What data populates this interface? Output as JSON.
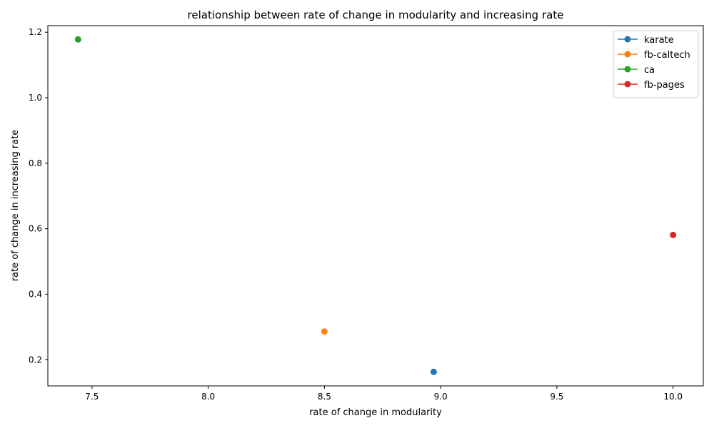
{
  "chart_data": {
    "type": "line",
    "title": "relationship between rate of change in modularity and increasing rate",
    "xlabel": "rate of change in modularity",
    "ylabel": "rate of change in increasing rate",
    "xlim": [
      7.31,
      10.13
    ],
    "ylim": [
      0.12,
      1.22
    ],
    "xticks": [
      7.5,
      8.0,
      8.5,
      9.0,
      9.5,
      10.0
    ],
    "xtick_labels": [
      "7.5",
      "8.0",
      "8.5",
      "9.0",
      "9.5",
      "10.0"
    ],
    "yticks": [
      0.2,
      0.4,
      0.6,
      0.8,
      1.0,
      1.2
    ],
    "ytick_labels": [
      "0.2",
      "0.4",
      "0.6",
      "0.8",
      "1.0",
      "1.2"
    ],
    "grid": false,
    "legend_position": "top-right",
    "series": [
      {
        "name": "karate",
        "color": "#1f77b4",
        "x": [
          8.97
        ],
        "y": [
          0.163
        ]
      },
      {
        "name": "fb-caltech",
        "color": "#ff7f0e",
        "x": [
          8.5
        ],
        "y": [
          0.286
        ]
      },
      {
        "name": "ca",
        "color": "#2ca02c",
        "x": [
          7.44
        ],
        "y": [
          1.178
        ]
      },
      {
        "name": "fb-pages",
        "color": "#d62728",
        "x": [
          10.0
        ],
        "y": [
          0.581
        ]
      }
    ]
  }
}
